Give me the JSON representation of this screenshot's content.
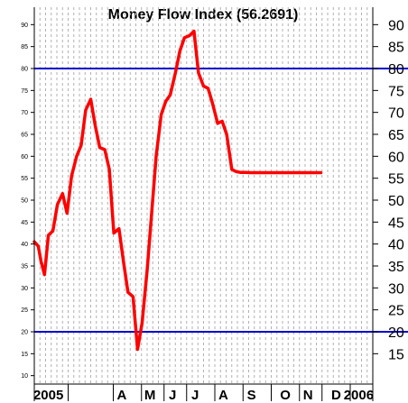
{
  "chart_data": {
    "type": "line",
    "title": "Money Flow Index (56.2691)",
    "xlabel": "",
    "ylabel": "",
    "ylim": [
      10,
      92
    ],
    "grid": true,
    "left_ticks": [
      10,
      15,
      20,
      25,
      30,
      35,
      40,
      45,
      50,
      55,
      60,
      65,
      70,
      75,
      80,
      85,
      90
    ],
    "right_ticks": [
      15,
      20,
      25,
      30,
      35,
      40,
      45,
      50,
      55,
      60,
      65,
      70,
      75,
      80,
      85,
      90
    ],
    "x_range": [
      0,
      60
    ],
    "x_labels": [
      {
        "label": "2005",
        "x": 2.5
      },
      {
        "label": "A",
        "x": 15.5
      },
      {
        "label": "M",
        "x": 20.5
      },
      {
        "label": "J",
        "x": 24.5
      },
      {
        "label": "J",
        "x": 28.5
      },
      {
        "label": "A",
        "x": 33.5
      },
      {
        "label": "S",
        "x": 38.5
      },
      {
        "label": "O",
        "x": 44.5
      },
      {
        "label": "N",
        "x": 48.5
      },
      {
        "label": "D",
        "x": 53.5
      },
      {
        "label": "2006",
        "x": 57.5
      }
    ],
    "reference_lines": [
      {
        "value": 80,
        "color": "#0000cc"
      },
      {
        "value": 20,
        "color": "#0000cc"
      }
    ],
    "series": [
      {
        "color": "#ff0000",
        "x": [
          0,
          0.7,
          1.2,
          1.8,
          2.5,
          3.3,
          4.1,
          5.0,
          5.8,
          6.6,
          7.5,
          8.3,
          9.1,
          10.0,
          10.8,
          11.6,
          12.5,
          13.3,
          14.1,
          15.0,
          15.8,
          16.6,
          17.5,
          18.3,
          19.1,
          20.0,
          20.8,
          21.6,
          22.5,
          23.3,
          24.1,
          25.0,
          25.8,
          26.6,
          27.5,
          28.3,
          29.1,
          30.0,
          30.8,
          31.6,
          32.5,
          33.3,
          34.1,
          35.0,
          35.8,
          36.6,
          37.5,
          38.3,
          39.1,
          40.0,
          40.8,
          41.6,
          42.5,
          43.3,
          44.1,
          45.0,
          45.8,
          46.6,
          47.5,
          48.3,
          49.1,
          50.0,
          50.8
        ],
        "values": [
          40.5,
          39.5,
          36,
          33,
          42,
          43,
          49,
          51.5,
          47,
          55.5,
          60,
          62.5,
          70.5,
          73,
          67,
          62,
          61.5,
          57,
          42.5,
          43.5,
          36,
          29,
          28,
          16,
          22,
          34,
          47,
          60,
          69.5,
          72.5,
          74,
          79,
          84,
          87,
          87.5,
          88.5,
          79,
          76,
          75.5,
          72,
          67.5,
          68,
          65,
          57,
          56.5,
          56.3,
          56.3,
          56.27,
          56.27,
          56.27,
          56.27,
          56.27,
          56.27,
          56.27,
          56.27,
          56.27,
          56.27,
          56.27,
          56.27,
          56.27,
          56.27,
          56.27,
          56.27
        ]
      }
    ]
  }
}
